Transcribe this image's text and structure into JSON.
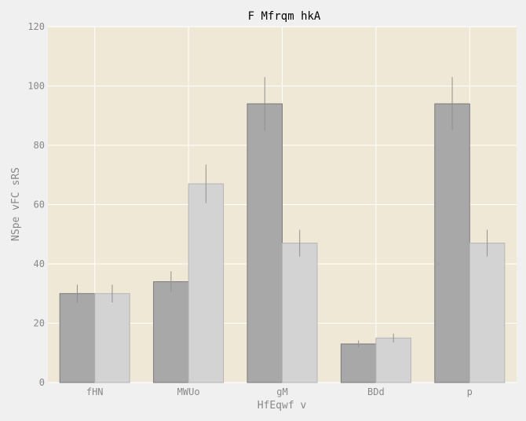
{
  "chart_data": {
    "type": "bar",
    "title": "F Mfrqm hkA",
    "xlabel": "HfEqwf v",
    "ylabel": "NSpe  vFC sRS",
    "categories": [
      "fHN",
      "MWUo",
      "gM",
      "BDd",
      "p"
    ],
    "series": [
      {
        "values": [
          30,
          34,
          94,
          13,
          94
        ],
        "errors": [
          3,
          3.5,
          9,
          1.2,
          9
        ],
        "color": "#a8a8a8"
      },
      {
        "values": [
          30,
          67,
          47,
          15,
          47
        ],
        "errors": [
          3,
          6.5,
          4.5,
          1.5,
          4.5
        ],
        "color": "#d3d3d3"
      }
    ],
    "ylim": [
      0,
      120
    ],
    "yticks": [
      0,
      20,
      40,
      60,
      80,
      100,
      120
    ],
    "grid": true,
    "plot_background": "#f0e8d6",
    "page_background": "#f0f0f0",
    "error_bar_color": "#909090"
  }
}
